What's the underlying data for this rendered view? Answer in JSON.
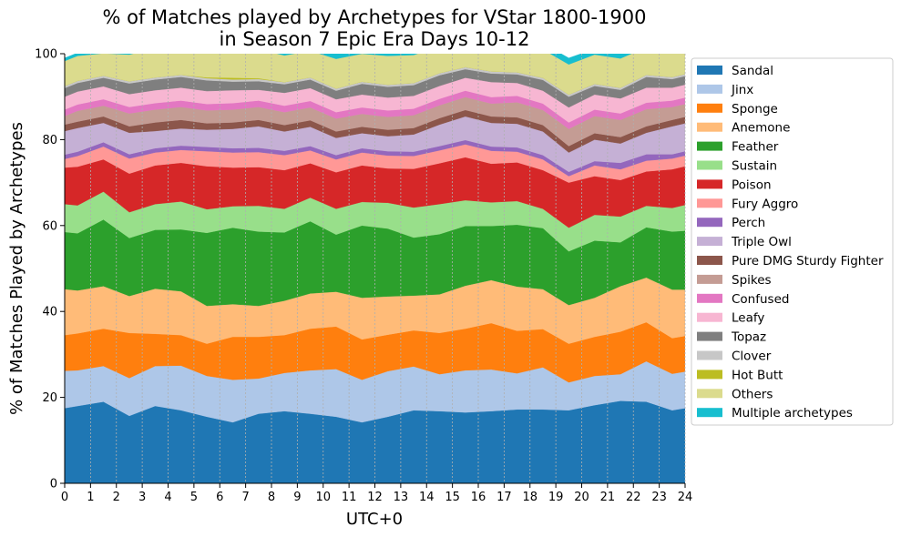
{
  "chart_data": {
    "type": "area",
    "stacked": true,
    "title_line1": "% of Matches played by Archetypes for VStar 1800-1900",
    "title_line2": "in Season 7 Epic Era Days 10-12",
    "xlabel": "UTC+0",
    "ylabel": "% of Matches Played by Archetypes",
    "xlim": [
      0,
      24
    ],
    "ylim": [
      0,
      100
    ],
    "xticks": [
      "0",
      "1",
      "2",
      "3",
      "4",
      "5",
      "6",
      "7",
      "8",
      "9",
      "10",
      "11",
      "12",
      "13",
      "14",
      "15",
      "16",
      "17",
      "18",
      "19",
      "20",
      "21",
      "22",
      "23",
      "24"
    ],
    "yticks": [
      "0",
      "20",
      "40",
      "60",
      "80",
      "100"
    ],
    "grid": "vertical dashed",
    "legend_position": "right, outside",
    "x": [
      0,
      0.5,
      1.5,
      2.5,
      3.5,
      4.5,
      5.5,
      6.5,
      7.5,
      8.5,
      9.5,
      10.5,
      11.5,
      12.5,
      13.5,
      14.5,
      15.5,
      16.5,
      17.5,
      18.5,
      19.5,
      20.5,
      21.5,
      22.5,
      23.5,
      24
    ],
    "series": [
      {
        "name": "Sandal",
        "color": "#1f77b4",
        "values": [
          17.5,
          18,
          19,
          15.7,
          18,
          17,
          15.5,
          14.2,
          16.2,
          16.8,
          16.2,
          15.5,
          14.2,
          15.5,
          17,
          16.8,
          16.5,
          16.8,
          17.2,
          17.2,
          17,
          18.2,
          19.2,
          19,
          17,
          17.5
        ]
      },
      {
        "name": "Jinx",
        "color": "#aec7e8",
        "values": [
          8.7,
          8.3,
          8.3,
          8.8,
          9.3,
          10.4,
          9.5,
          9.9,
          8.2,
          8.9,
          10.1,
          11.1,
          9.9,
          10.6,
          10.2,
          8.6,
          9.8,
          9.7,
          8.4,
          9.8,
          6.5,
          6.8,
          6.2,
          9.4,
          8.5,
          8.5
        ]
      },
      {
        "name": "Sponge",
        "color": "#ff7f0e",
        "values": [
          8.3,
          8.6,
          8.7,
          10.5,
          7.5,
          7.1,
          7.5,
          10,
          9.7,
          8.8,
          9.7,
          9.9,
          9.4,
          8.5,
          8.4,
          9.6,
          9.7,
          10.8,
          9.9,
          8.9,
          9,
          9.1,
          9.9,
          9.1,
          8.3,
          8.3
        ]
      },
      {
        "name": "Anemone",
        "color": "#ffbb78",
        "values": [
          10.7,
          10,
          9.9,
          8.6,
          10.5,
          10.2,
          8.8,
          7.6,
          7.2,
          8,
          8.2,
          8.1,
          9.7,
          8.9,
          8.1,
          9,
          10,
          10,
          10.3,
          9.3,
          9,
          9.1,
          10.6,
          10.4,
          11.3,
          10.8
        ]
      },
      {
        "name": "Feather",
        "color": "#2ca02c",
        "values": [
          13.3,
          13.3,
          15.5,
          13.5,
          13.7,
          14.4,
          17,
          17.8,
          17.3,
          15.9,
          16.8,
          13.3,
          16.8,
          15.8,
          13.5,
          14,
          13.9,
          12.6,
          14.4,
          14.2,
          12.5,
          13.3,
          10.2,
          11.7,
          13.5,
          13.7
        ]
      },
      {
        "name": "Sustain",
        "color": "#98df8a",
        "values": [
          6.5,
          6.5,
          6.5,
          6,
          6,
          6.5,
          5.5,
          5,
          6,
          5.5,
          5.5,
          6,
          5.5,
          6,
          7,
          7,
          6,
          5.5,
          5.5,
          4.5,
          5.5,
          6,
          6,
          5,
          5.5,
          6
        ]
      },
      {
        "name": "Poison",
        "color": "#d62728",
        "values": [
          8.5,
          9,
          7.5,
          9,
          9,
          9,
          10,
          9,
          9,
          9,
          8,
          8.5,
          8.5,
          8,
          9,
          9.5,
          10,
          9,
          9,
          9,
          10.5,
          9,
          8.5,
          8,
          9,
          9
        ]
      },
      {
        "name": "Fury Aggro",
        "color": "#ff9896",
        "values": [
          2,
          2.5,
          3,
          3.5,
          3,
          3,
          3.5,
          3.5,
          3.5,
          3.5,
          3,
          3,
          3,
          3,
          3,
          3,
          3,
          3,
          2.5,
          2.5,
          1.5,
          2.5,
          2.5,
          2.5,
          2.5,
          2.5
        ]
      },
      {
        "name": "Perch",
        "color": "#9467bd",
        "values": [
          1,
          1,
          1,
          1,
          1,
          1,
          1,
          1,
          1,
          1,
          1,
          1,
          1,
          1,
          1,
          1,
          1,
          1,
          1,
          1,
          1,
          1,
          1.5,
          1.5,
          1,
          1
        ]
      },
      {
        "name": "Triple Owl",
        "color": "#c5b0d5",
        "values": [
          5.5,
          5.5,
          4.5,
          5,
          4,
          4,
          4,
          4.5,
          5,
          4.5,
          4.5,
          4,
          3.5,
          3.5,
          4,
          5,
          5.5,
          5.5,
          5.5,
          5.5,
          4.5,
          5,
          4.5,
          5,
          6.5,
          6.5
        ]
      },
      {
        "name": "Pure DMG Sturdy Fighter",
        "color": "#8c564b",
        "values": [
          1.5,
          1.5,
          1.5,
          1.5,
          2,
          2,
          1.5,
          1.5,
          1.5,
          1.5,
          1.5,
          1.5,
          1.5,
          1.5,
          1.5,
          1.5,
          1.5,
          1.5,
          1.5,
          1.5,
          1.5,
          1.5,
          1.5,
          1.5,
          1.5,
          1.5
        ]
      },
      {
        "name": "Spikes",
        "color": "#c49c94",
        "values": [
          2,
          2.5,
          2.5,
          3,
          3,
          3,
          3,
          3,
          3,
          3,
          3,
          3,
          3,
          3,
          3,
          3,
          3,
          3,
          3.5,
          3.5,
          4,
          4,
          4,
          4,
          3,
          3
        ]
      },
      {
        "name": "Confused",
        "color": "#e377c2",
        "values": [
          1.5,
          1.5,
          1.5,
          1.5,
          1.5,
          1.5,
          1.5,
          1.5,
          1.5,
          1.5,
          1.5,
          1.5,
          1.5,
          1.5,
          1.5,
          1.5,
          1.5,
          1.5,
          1.5,
          1.5,
          1.5,
          1.5,
          1.5,
          1.5,
          1.5,
          1.5
        ]
      },
      {
        "name": "Leafy",
        "color": "#f7b6d2",
        "values": [
          3,
          3,
          3,
          3,
          3,
          3,
          3,
          3,
          2.5,
          3,
          3,
          3,
          3,
          3,
          3,
          3,
          3,
          3.5,
          3,
          3,
          3.5,
          3.5,
          3.5,
          3.5,
          3,
          3
        ]
      },
      {
        "name": "Topaz",
        "color": "#7f7f7f",
        "values": [
          2,
          2,
          2,
          2.5,
          2.5,
          2.5,
          2.5,
          2,
          2,
          2,
          2,
          2,
          2.5,
          2.5,
          2.5,
          2.5,
          2,
          2,
          2,
          2.5,
          2.5,
          2,
          2,
          2.5,
          2,
          2
        ]
      },
      {
        "name": "Clover",
        "color": "#c7c7c7",
        "values": [
          0.5,
          0.5,
          0.5,
          0.5,
          0.5,
          0.5,
          0.5,
          0.5,
          0.5,
          0.5,
          0.5,
          0.5,
          0.5,
          0.5,
          0.5,
          0.5,
          0.5,
          0.5,
          0.5,
          0.5,
          0.5,
          0.5,
          0.5,
          0.5,
          0.5,
          0.5
        ]
      },
      {
        "name": "Hot Butt",
        "color": "#bcbd22",
        "values": [
          0,
          0,
          0,
          0,
          0,
          0,
          0.2,
          0.4,
          0.2,
          0,
          0,
          0,
          0,
          0,
          0,
          0,
          0,
          0,
          0,
          0,
          0,
          0,
          0,
          0,
          0,
          0
        ]
      },
      {
        "name": "Others",
        "color": "#dbdb8d",
        "values": [
          5.8,
          5.8,
          5.2,
          6.2,
          6.8,
          6.5,
          6.9,
          7.2,
          6.8,
          6.2,
          6.2,
          6.9,
          6.5,
          6.7,
          6.5,
          6.3,
          5.7,
          5.7,
          5.8,
          6.6,
          7,
          6.8,
          6.8,
          6.4,
          5.7,
          5.7
        ]
      },
      {
        "name": "Multiple archetypes",
        "color": "#17becf",
        "values": [
          0.7,
          0.7,
          0.9,
          1.2,
          1.2,
          0.8,
          1,
          1.4,
          1.4,
          1,
          0.8,
          1.2,
          1.5,
          1.5,
          1.3,
          1.1,
          1.1,
          0.9,
          0.7,
          1.4,
          1.5,
          1.3,
          1.1,
          1.1,
          1.2,
          1.3
        ]
      }
    ]
  }
}
